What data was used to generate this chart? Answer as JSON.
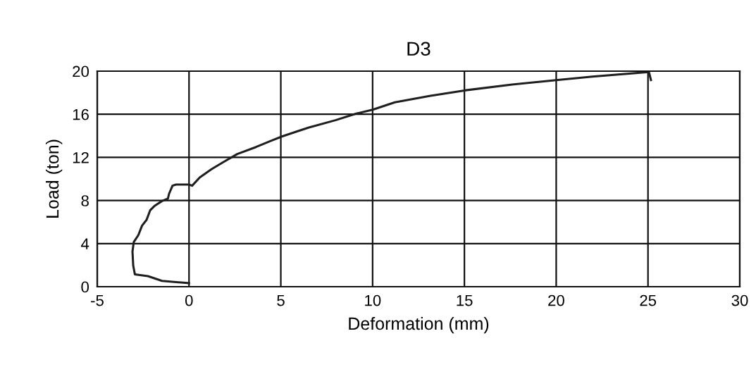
{
  "chart_data": {
    "type": "line",
    "title": "D3",
    "xlabel": "Deformation (mm)",
    "ylabel": "Load (ton)",
    "series": [
      {
        "color": "#1f1f1f",
        "x": [
          0,
          -1.47,
          -2.24,
          -2.95,
          -3.04,
          -3.08,
          -3.01,
          -2.76,
          -2.56,
          -2.31,
          -2.12,
          -1.86,
          -1.47,
          -1.15,
          -1.09,
          -0.9,
          -0.71,
          0,
          0.17,
          0.58,
          1.22,
          1.86,
          2.63,
          3.65,
          4.42,
          5.06,
          5.83,
          6.53,
          7.98,
          9.11,
          10,
          11.21,
          13.15,
          15,
          17.6,
          20,
          21.97,
          25.05,
          25.16
        ],
        "values": [
          0.33,
          0.54,
          0.98,
          1.15,
          1.96,
          3.27,
          4.14,
          4.79,
          5.66,
          6.21,
          7.08,
          7.52,
          7.95,
          8.17,
          8.61,
          9.37,
          9.48,
          9.48,
          9.37,
          10.13,
          10.9,
          11.55,
          12.31,
          12.96,
          13.5,
          13.94,
          14.38,
          14.77,
          15.45,
          16.06,
          16.42,
          17.11,
          17.71,
          18.21,
          18.76,
          19.17,
          19.5,
          19.92,
          19.17
        ]
      }
    ],
    "xlim": [
      -5,
      30
    ],
    "xticks": [
      -5,
      0,
      5,
      10,
      15,
      20,
      25,
      30
    ],
    "ylim": [
      0,
      20
    ],
    "yticks": [
      0,
      4,
      8,
      12,
      16,
      20
    ],
    "grid": true,
    "marker": "none",
    "line_style": "solid",
    "legend": false
  }
}
